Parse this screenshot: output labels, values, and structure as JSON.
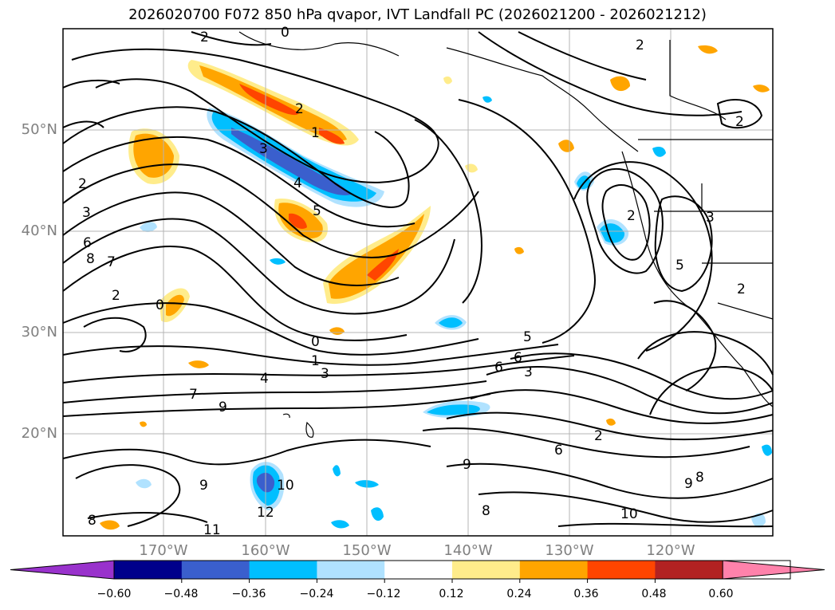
{
  "title": "2026020700 F072 850 hPa qvapor, IVT Landfall PC (2026021200 - 2026021212)",
  "lat_labels": [
    "50°N",
    "40°N",
    "30°N",
    "20°N"
  ],
  "lon_labels": [
    "170°W",
    "160°W",
    "150°W",
    "140°W",
    "130°W",
    "120°W"
  ],
  "colorbar": {
    "ticks": [
      "−0.60",
      "−0.48",
      "−0.36",
      "−0.24",
      "−0.12",
      "0.12",
      "0.24",
      "0.36",
      "0.48",
      "0.60"
    ],
    "colors": [
      "#9932cc",
      "#00008b",
      "#3a5fcd",
      "#00bfff",
      "#b0e2ff",
      "#ffffff",
      "#ffec8b",
      "#ffa500",
      "#ff4500",
      "#b22222",
      "#ff82ab"
    ]
  },
  "contour_labels": [
    "2",
    "0",
    "2",
    "1",
    "3",
    "4",
    "5",
    "2",
    "3",
    "6",
    "8",
    "7",
    "2",
    "0",
    "0",
    "1",
    "3",
    "4",
    "7",
    "9",
    "5",
    "6",
    "6",
    "3",
    "2",
    "2",
    "3",
    "5",
    "2",
    "2",
    "6",
    "9",
    "9",
    "8",
    "10",
    "12",
    "11",
    "8",
    "9",
    "8",
    "10",
    "2"
  ],
  "colors": {
    "frame": "#000000",
    "grid": "#b4b4b4",
    "land": "#000000",
    "axis_label": "#808080"
  }
}
